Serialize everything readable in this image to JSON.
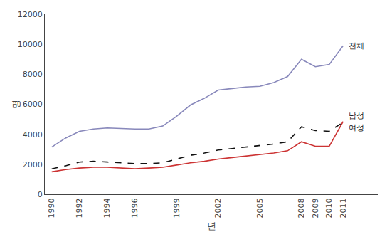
{
  "chart_data": {
    "type": "line",
    "xlabel": "년",
    "ylabel": "명",
    "x": [
      1990,
      1991,
      1992,
      1993,
      1994,
      1995,
      1996,
      1997,
      1998,
      1999,
      2000,
      2001,
      2002,
      2003,
      2004,
      2005,
      2006,
      2007,
      2008,
      2009,
      2010,
      2011
    ],
    "series": [
      {
        "name": "전체",
        "color": "#8888bb",
        "line_style": "solid",
        "values": [
          3150,
          3750,
          4200,
          4350,
          4420,
          4380,
          4350,
          4350,
          4550,
          5200,
          5950,
          6400,
          6950,
          7050,
          7150,
          7200,
          7450,
          7850,
          9000,
          8500,
          8650,
          9900
        ]
      },
      {
        "name": "남성",
        "color": "#111111",
        "line_style": "dashed",
        "values": [
          1700,
          1900,
          2150,
          2200,
          2150,
          2100,
          2050,
          2050,
          2100,
          2350,
          2600,
          2750,
          2950,
          3050,
          3150,
          3250,
          3350,
          3500,
          4500,
          4250,
          4200,
          4800
        ]
      },
      {
        "name": "여성",
        "color": "#cc3333",
        "line_style": "solid",
        "values": [
          1500,
          1650,
          1750,
          1800,
          1800,
          1750,
          1700,
          1750,
          1800,
          1950,
          2100,
          2200,
          2350,
          2450,
          2550,
          2650,
          2750,
          2900,
          3500,
          3200,
          3200,
          4850
        ]
      }
    ],
    "xlim": [
      1989.5,
      2013.5
    ],
    "xticks": [
      1990,
      1992,
      1994,
      1996,
      1999,
      2002,
      2005,
      2008,
      2009,
      2010,
      2011
    ],
    "ylim": [
      0,
      12000
    ],
    "yticks": [
      0,
      2000,
      4000,
      6000,
      8000,
      10000,
      12000
    ],
    "grid": false
  }
}
